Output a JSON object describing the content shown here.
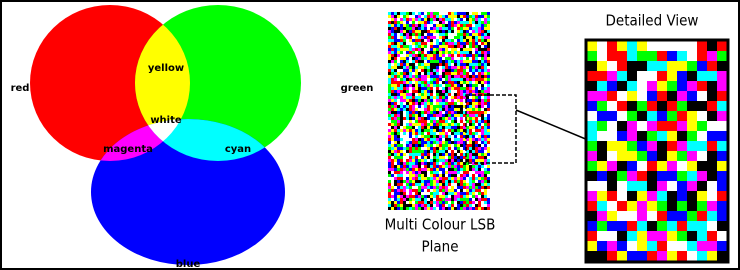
{
  "venn": {
    "red": "red",
    "green": "green",
    "blue": "blue",
    "yellow": "yellow",
    "white": "white",
    "magenta": "magenta",
    "cyan": "cyan"
  },
  "lsb": {
    "caption": [
      "Multi Colour LSB",
      "Plane"
    ],
    "detail_title": "Detailed View"
  }
}
